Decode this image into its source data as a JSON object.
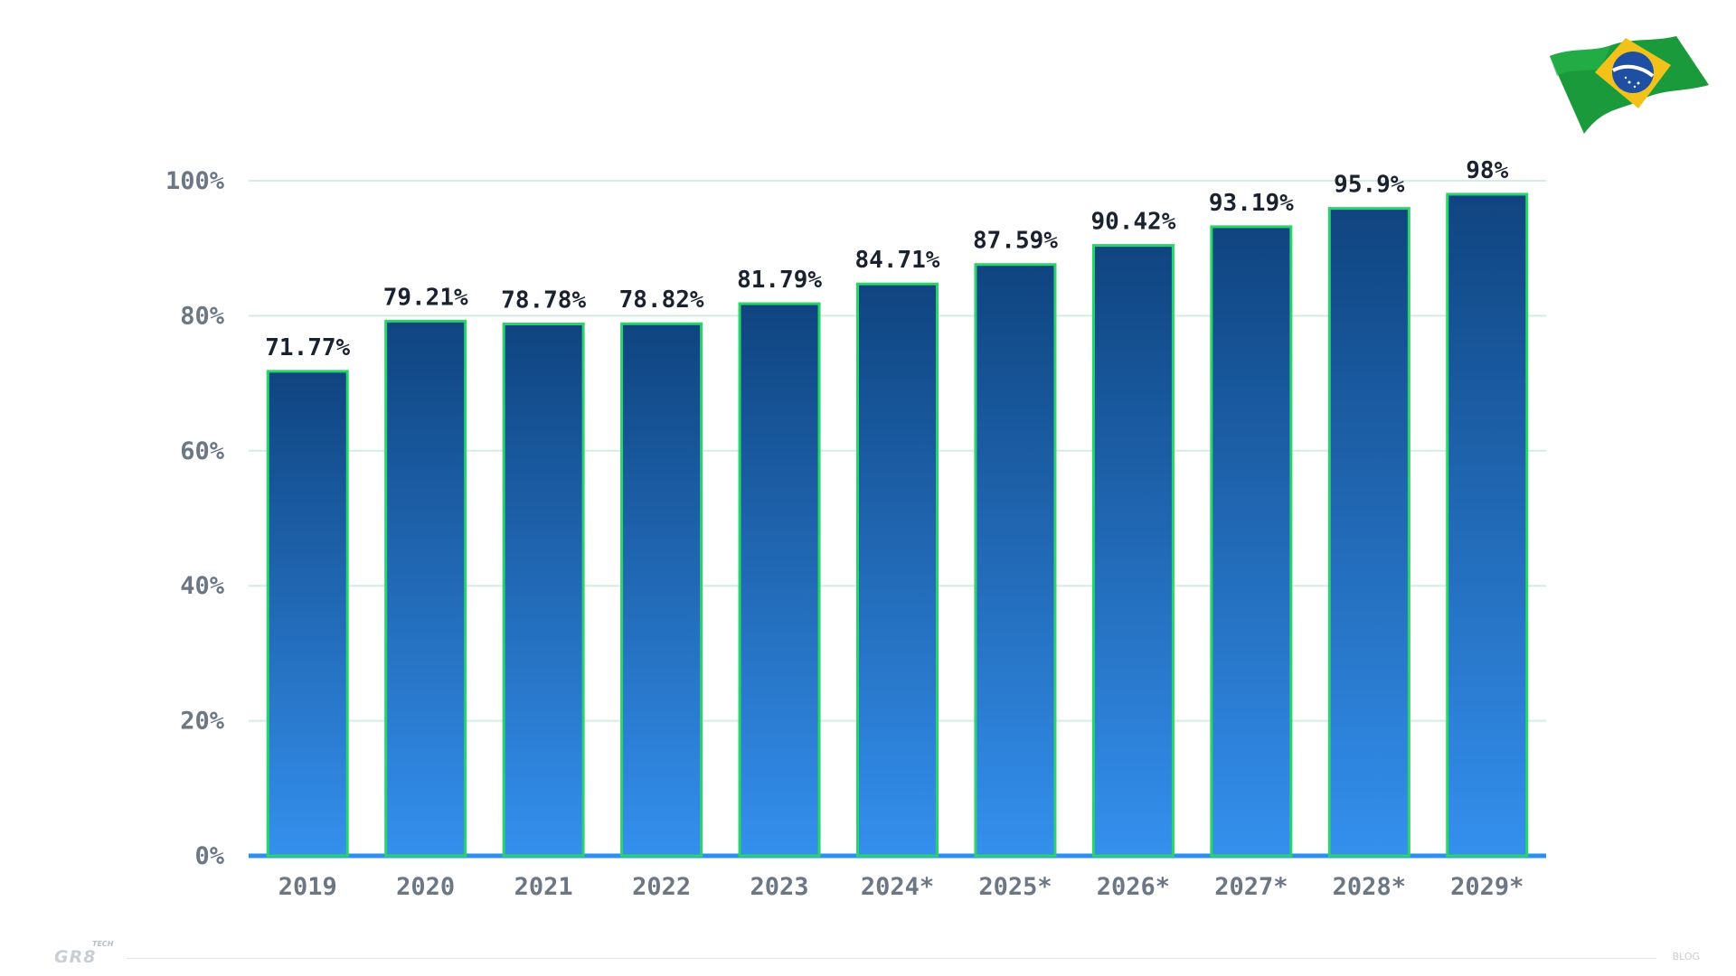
{
  "chart_data": {
    "type": "bar",
    "categories": [
      "2019",
      "2020",
      "2021",
      "2022",
      "2023",
      "2024*",
      "2025*",
      "2026*",
      "2027*",
      "2028*",
      "2029*"
    ],
    "values": [
      71.77,
      79.21,
      78.78,
      78.82,
      81.79,
      84.71,
      87.59,
      90.42,
      93.19,
      95.9,
      98
    ],
    "value_labels": [
      "71.77%",
      "79.21%",
      "78.78%",
      "78.82%",
      "81.79%",
      "84.71%",
      "87.59%",
      "90.42%",
      "93.19%",
      "95.9%",
      "98%"
    ],
    "yticks": [
      0,
      20,
      40,
      60,
      80,
      100
    ],
    "ytick_labels": [
      "0%",
      "20%",
      "40%",
      "60%",
      "80%",
      "100%"
    ],
    "ylim": [
      0,
      100
    ],
    "grid": true,
    "colors": {
      "bar_top": "#0f4480",
      "bar_bottom": "#3490ee",
      "bar_outline": "#29d46a",
      "gridline": "#d3eee1",
      "baseline": "#2f8ff0"
    }
  },
  "footer": {
    "logo": "GR8",
    "logo_sup": "TECH",
    "right_text": "BLOG"
  },
  "flag_icon": "brazil-flag-icon"
}
